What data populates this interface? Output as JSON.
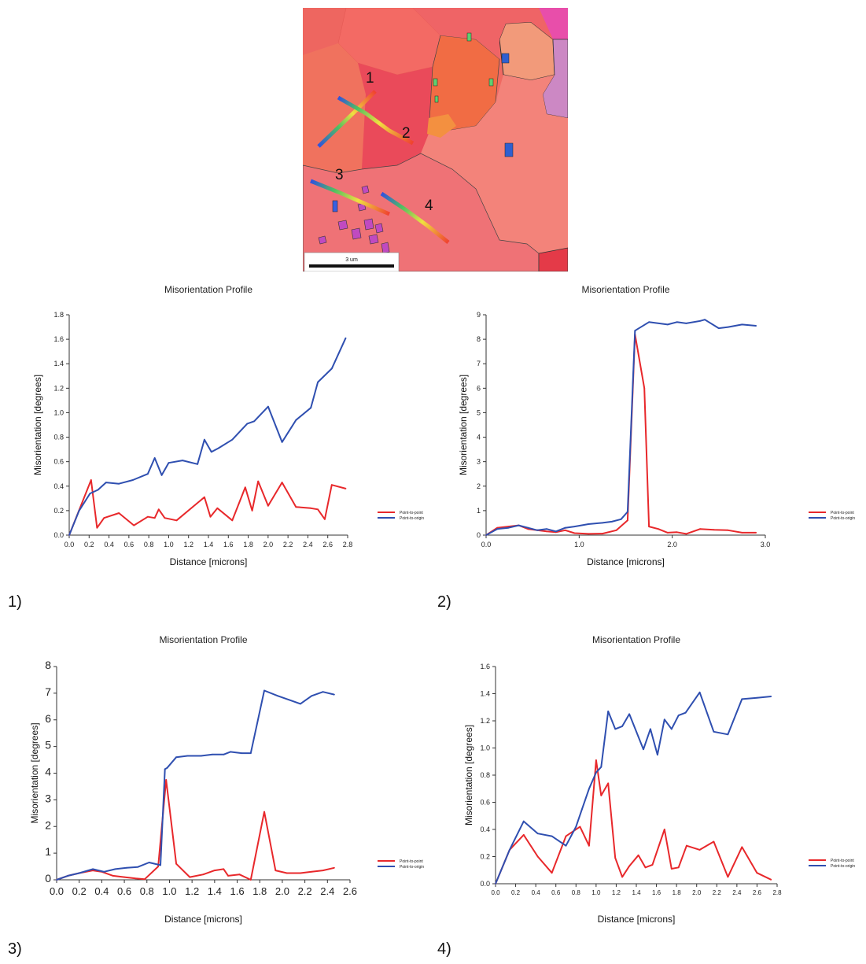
{
  "figure": {
    "map": {
      "path_labels": [
        "1",
        "2",
        "3",
        "4"
      ],
      "scale_bar_label": "3 um"
    },
    "panel_labels": [
      "1)",
      "2)",
      "3)",
      "4)"
    ]
  },
  "colors": {
    "point_to_point": "#e8282b",
    "point_to_origin": "#2f4fb0"
  },
  "chart_data": [
    {
      "type": "line",
      "title": "Misorientation Profile",
      "xlabel": "Distance [microns]",
      "ylabel": "Misorientation [degrees]",
      "xlim": [
        0,
        2.8
      ],
      "ylim": [
        0,
        1.8
      ],
      "xticks": [
        0.0,
        0.2,
        0.4,
        0.6,
        0.8,
        1.0,
        1.2,
        1.4,
        1.6,
        1.8,
        2.0,
        2.2,
        2.4,
        2.6,
        2.8
      ],
      "xtick_labels": [
        "0.0",
        "0.2",
        "0.4",
        "0.6",
        "0.8",
        "1.0",
        "1.2",
        "1.4",
        "1.6",
        "1.8",
        "2.0",
        "2.2",
        "2.4",
        "2.6",
        "2.8"
      ],
      "yticks": [
        0,
        0.2,
        0.4,
        0.6,
        0.8,
        1.0,
        1.2,
        1.4,
        1.6,
        1.8
      ],
      "ytick_labels": [
        "0.0",
        "0.2",
        "0.4",
        "0.6",
        "0.8",
        "1.0",
        "1.2",
        "1.4",
        "1.6",
        "1.8"
      ],
      "grid": false,
      "legend": "right",
      "series": [
        {
          "name": "Point-to-point",
          "color": "#e8282b",
          "x": [
            0.0,
            0.22,
            0.28,
            0.35,
            0.5,
            0.65,
            0.79,
            0.86,
            0.9,
            0.96,
            1.08,
            1.36,
            1.42,
            1.49,
            1.64,
            1.77,
            1.84,
            1.9,
            2.0,
            2.14,
            2.28,
            2.43,
            2.5,
            2.57,
            2.64,
            2.78
          ],
          "values": [
            0.0,
            0.45,
            0.06,
            0.14,
            0.18,
            0.08,
            0.15,
            0.14,
            0.21,
            0.14,
            0.12,
            0.31,
            0.15,
            0.22,
            0.12,
            0.39,
            0.2,
            0.44,
            0.24,
            0.43,
            0.23,
            0.22,
            0.21,
            0.13,
            0.41,
            0.38
          ]
        },
        {
          "name": "Point-to-origin",
          "color": "#2f4fb0",
          "x": [
            0.0,
            0.1,
            0.21,
            0.29,
            0.37,
            0.5,
            0.64,
            0.79,
            0.86,
            0.93,
            1.0,
            1.14,
            1.29,
            1.36,
            1.43,
            1.5,
            1.64,
            1.79,
            1.86,
            2.0,
            2.14,
            2.28,
            2.43,
            2.5,
            2.64,
            2.78
          ],
          "values": [
            0.0,
            0.2,
            0.34,
            0.37,
            0.43,
            0.42,
            0.45,
            0.5,
            0.63,
            0.49,
            0.59,
            0.61,
            0.58,
            0.78,
            0.68,
            0.71,
            0.78,
            0.91,
            0.93,
            1.05,
            0.76,
            0.94,
            1.04,
            1.25,
            1.36,
            1.61
          ]
        }
      ]
    },
    {
      "type": "line",
      "title": "Misorientation Profile",
      "xlabel": "Distance [microns]",
      "ylabel": "Misorientation [degrees]",
      "xlim": [
        0,
        3.0
      ],
      "ylim": [
        0,
        9
      ],
      "xticks": [
        0.0,
        1.0,
        2.0,
        3.0
      ],
      "xtick_labels": [
        "0.0",
        "1.0",
        "2.0",
        "3.0"
      ],
      "yticks": [
        0,
        1,
        2,
        3,
        4,
        5,
        6,
        7,
        8,
        9
      ],
      "ytick_labels": [
        "0",
        "1",
        "2",
        "3",
        "4",
        "5",
        "6",
        "7",
        "8",
        "9"
      ],
      "grid": false,
      "legend": "right",
      "series": [
        {
          "name": "Point-to-point",
          "color": "#e8282b",
          "x": [
            0.0,
            0.12,
            0.24,
            0.35,
            0.45,
            0.55,
            0.65,
            0.75,
            0.85,
            0.95,
            1.1,
            1.25,
            1.4,
            1.52,
            1.6,
            1.7,
            1.75,
            1.85,
            1.95,
            2.05,
            2.15,
            2.3,
            2.45,
            2.6,
            2.75,
            2.9
          ],
          "values": [
            0.0,
            0.3,
            0.35,
            0.4,
            0.25,
            0.2,
            0.15,
            0.12,
            0.2,
            0.08,
            0.05,
            0.06,
            0.2,
            0.6,
            8.2,
            6.0,
            0.35,
            0.25,
            0.1,
            0.12,
            0.05,
            0.25,
            0.22,
            0.2,
            0.1,
            0.1
          ]
        },
        {
          "name": "Point-to-origin",
          "color": "#2f4fb0",
          "x": [
            0.0,
            0.12,
            0.24,
            0.35,
            0.45,
            0.55,
            0.65,
            0.75,
            0.85,
            0.95,
            1.1,
            1.25,
            1.35,
            1.45,
            1.52,
            1.6,
            1.75,
            1.95,
            2.05,
            2.15,
            2.3,
            2.35,
            2.5,
            2.6,
            2.75,
            2.9
          ],
          "values": [
            0.0,
            0.25,
            0.3,
            0.4,
            0.3,
            0.2,
            0.25,
            0.15,
            0.3,
            0.35,
            0.45,
            0.5,
            0.55,
            0.65,
            0.95,
            8.35,
            8.7,
            8.6,
            8.7,
            8.65,
            8.75,
            8.8,
            8.45,
            8.5,
            8.6,
            8.55
          ]
        }
      ]
    },
    {
      "type": "line",
      "title": "Misorientation Profile",
      "xlabel": "Distance [microns]",
      "ylabel": "Misorientation [degrees]",
      "xlim": [
        0,
        2.6
      ],
      "ylim": [
        0,
        8
      ],
      "xticks": [
        0.0,
        0.2,
        0.4,
        0.6,
        0.8,
        1.0,
        1.2,
        1.4,
        1.6,
        1.8,
        2.0,
        2.2,
        2.4,
        2.6
      ],
      "xtick_labels": [
        "0.0",
        "0.2",
        "0.4",
        "0.6",
        "0.8",
        "1.0",
        "1.2",
        "1.4",
        "1.6",
        "1.8",
        "2.0",
        "2.2",
        "2.4",
        "2.6"
      ],
      "yticks": [
        0,
        1,
        2,
        3,
        4,
        5,
        6,
        7,
        8
      ],
      "ytick_labels": [
        "0",
        "1",
        "2",
        "3",
        "4",
        "5",
        "6",
        "7",
        "8"
      ],
      "grid": false,
      "legend": "right",
      "series": [
        {
          "name": "Point-to-point",
          "color": "#e8282b",
          "x": [
            0.0,
            0.1,
            0.2,
            0.32,
            0.4,
            0.5,
            0.6,
            0.7,
            0.78,
            0.9,
            0.97,
            1.06,
            1.18,
            1.3,
            1.4,
            1.48,
            1.52,
            1.62,
            1.72,
            1.84,
            1.94,
            2.04,
            2.16,
            2.26,
            2.36,
            2.46
          ],
          "values": [
            0.0,
            0.15,
            0.25,
            0.35,
            0.3,
            0.15,
            0.1,
            0.05,
            0.02,
            0.5,
            3.75,
            0.6,
            0.1,
            0.2,
            0.35,
            0.4,
            0.15,
            0.2,
            0.0,
            2.55,
            0.35,
            0.25,
            0.25,
            0.3,
            0.35,
            0.45
          ]
        },
        {
          "name": "Point-to-origin",
          "color": "#2f4fb0",
          "x": [
            0.0,
            0.1,
            0.2,
            0.32,
            0.42,
            0.52,
            0.62,
            0.72,
            0.82,
            0.92,
            0.96,
            0.98,
            1.06,
            1.16,
            1.28,
            1.38,
            1.48,
            1.54,
            1.64,
            1.72,
            1.84,
            1.96,
            2.06,
            2.16,
            2.26,
            2.36,
            2.46
          ],
          "values": [
            0.0,
            0.15,
            0.25,
            0.4,
            0.3,
            0.4,
            0.45,
            0.48,
            0.65,
            0.55,
            4.15,
            4.2,
            4.6,
            4.65,
            4.65,
            4.7,
            4.7,
            4.8,
            4.75,
            4.75,
            7.1,
            6.9,
            6.75,
            6.6,
            6.9,
            7.05,
            6.95
          ]
        }
      ]
    },
    {
      "type": "line",
      "title": "Misorientation Profile",
      "xlabel": "Distance [microns]",
      "ylabel": "Misorientation [degrees]",
      "xlim": [
        0,
        2.8
      ],
      "ylim": [
        0,
        1.6
      ],
      "xticks": [
        0.0,
        0.2,
        0.4,
        0.6,
        0.8,
        1.0,
        1.2,
        1.4,
        1.6,
        1.8,
        2.0,
        2.2,
        2.4,
        2.6,
        2.8
      ],
      "xtick_labels": [
        "0.0",
        "0.2",
        "0.4",
        "0.6",
        "0.8",
        "1.0",
        "1.2",
        "1.4",
        "1.6",
        "1.8",
        "2.0",
        "2.2",
        "2.4",
        "2.6",
        "2.8"
      ],
      "yticks": [
        0,
        0.2,
        0.4,
        0.6,
        0.8,
        1.0,
        1.2,
        1.4,
        1.6
      ],
      "ytick_labels": [
        "0.0",
        "0.2",
        "0.4",
        "0.6",
        "0.8",
        "1.0",
        "1.2",
        "1.4",
        "1.6"
      ],
      "grid": false,
      "legend": "right",
      "series": [
        {
          "name": "Point-to-point",
          "color": "#e8282b",
          "x": [
            0.0,
            0.14,
            0.28,
            0.42,
            0.56,
            0.7,
            0.84,
            0.93,
            1.0,
            1.05,
            1.12,
            1.19,
            1.26,
            1.33,
            1.42,
            1.49,
            1.56,
            1.68,
            1.75,
            1.82,
            1.9,
            2.03,
            2.17,
            2.31,
            2.45,
            2.6,
            2.74
          ],
          "values": [
            0.0,
            0.25,
            0.36,
            0.2,
            0.08,
            0.35,
            0.42,
            0.28,
            0.91,
            0.65,
            0.74,
            0.19,
            0.05,
            0.13,
            0.21,
            0.12,
            0.14,
            0.4,
            0.11,
            0.12,
            0.28,
            0.25,
            0.31,
            0.05,
            0.27,
            0.08,
            0.03
          ]
        },
        {
          "name": "Point-to-origin",
          "color": "#2f4fb0",
          "x": [
            0.0,
            0.14,
            0.28,
            0.42,
            0.56,
            0.7,
            0.8,
            0.86,
            0.93,
            1.0,
            1.05,
            1.12,
            1.19,
            1.26,
            1.33,
            1.47,
            1.54,
            1.61,
            1.68,
            1.75,
            1.82,
            1.89,
            2.03,
            2.17,
            2.31,
            2.45,
            2.6,
            2.74
          ],
          "values": [
            0.0,
            0.25,
            0.46,
            0.37,
            0.35,
            0.28,
            0.42,
            0.55,
            0.7,
            0.82,
            0.86,
            1.27,
            1.14,
            1.16,
            1.25,
            0.99,
            1.14,
            0.95,
            1.21,
            1.14,
            1.24,
            1.26,
            1.41,
            1.12,
            1.1,
            1.36,
            1.37,
            1.38
          ]
        }
      ]
    }
  ]
}
